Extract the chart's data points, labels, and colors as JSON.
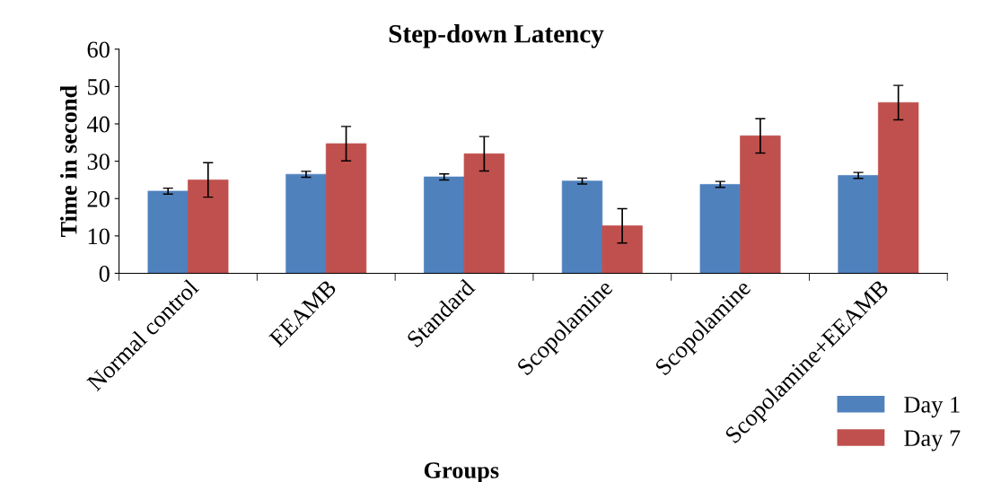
{
  "chart_data": {
    "type": "bar",
    "title": "Step-down Latency",
    "xlabel": "Groups",
    "ylabel": "Time in second",
    "categories": [
      "Normal control",
      "EEAMB",
      "Standard",
      "Scopolamine",
      "Scopolamine",
      "Scopolamine+EEAMB"
    ],
    "series": [
      {
        "name": "Day 1",
        "color": "#4f81bd",
        "values": [
          22,
          26.5,
          25.8,
          24.7,
          23.8,
          26.2
        ],
        "errors": [
          0.8,
          0.8,
          0.8,
          0.8,
          0.8,
          0.8
        ]
      },
      {
        "name": "Day 7",
        "color": "#c0504d",
        "values": [
          25,
          34.7,
          32,
          12.7,
          36.8,
          45.7
        ],
        "errors": [
          4.6,
          4.6,
          4.6,
          4.6,
          4.6,
          4.6
        ]
      }
    ],
    "ylim": [
      0,
      60
    ],
    "yticks": [
      0,
      10,
      20,
      30,
      40,
      50,
      60
    ],
    "grid": false,
    "legend": "bottom right"
  }
}
